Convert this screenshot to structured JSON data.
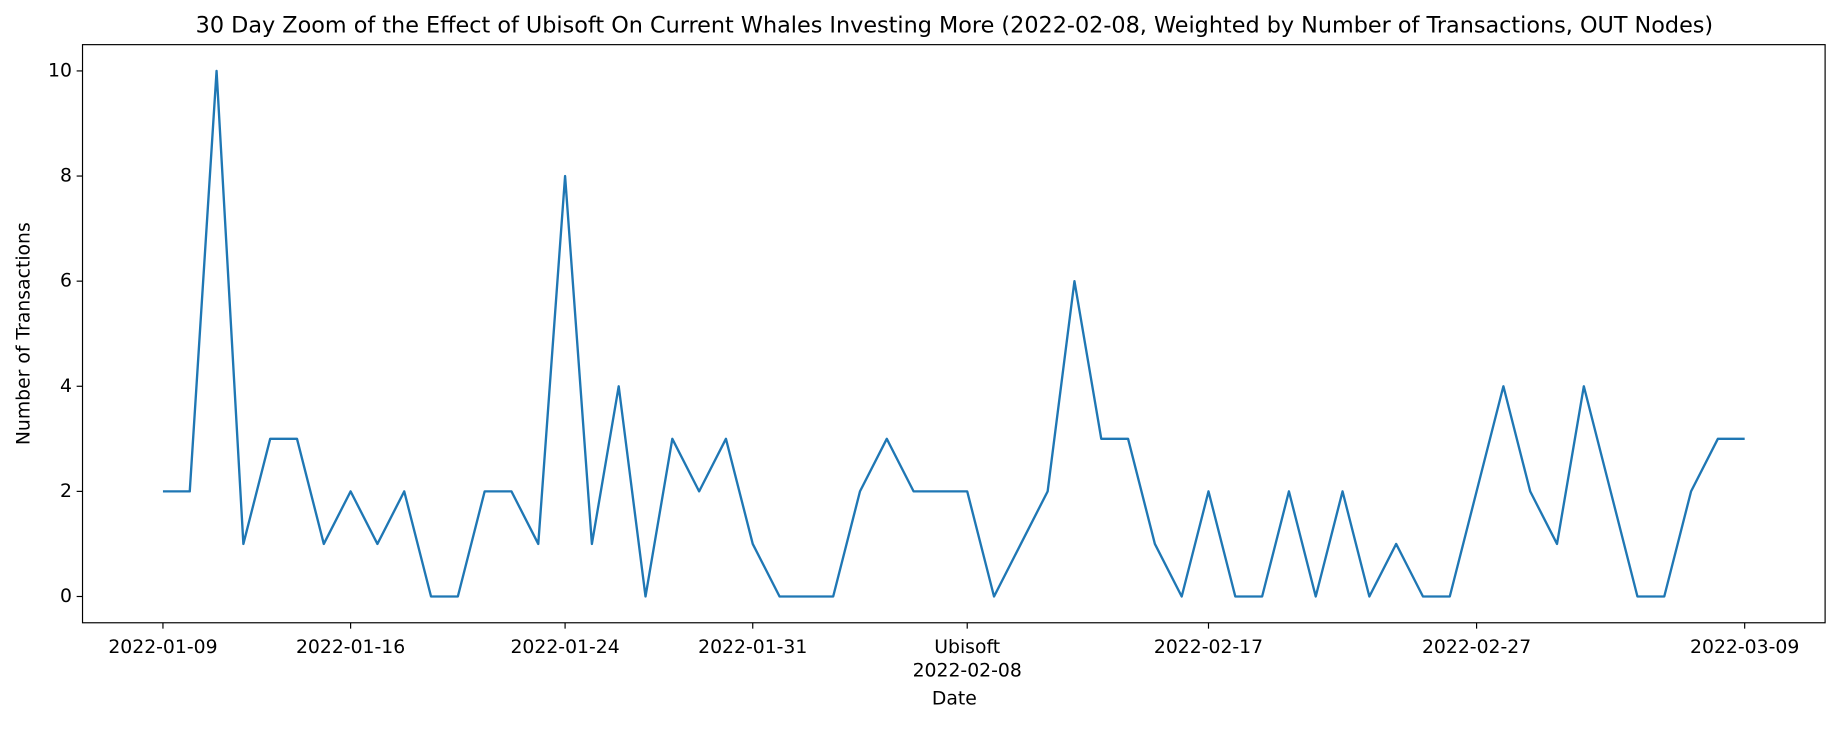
{
  "chart_data": {
    "type": "line",
    "title": "30 Day Zoom of the Effect of Ubisoft On Current Whales Investing More (2022-02-08, Weighted by Number of Transactions, OUT Nodes)",
    "xlabel": "Date",
    "ylabel": "Number of Transactions",
    "x": [
      "2022-01-09",
      "2022-01-10",
      "2022-01-11",
      "2022-01-12",
      "2022-01-13",
      "2022-01-14",
      "2022-01-15",
      "2022-01-16",
      "2022-01-17",
      "2022-01-18",
      "2022-01-19",
      "2022-01-20",
      "2022-01-21",
      "2022-01-22",
      "2022-01-23",
      "2022-01-24",
      "2022-01-25",
      "2022-01-26",
      "2022-01-27",
      "2022-01-28",
      "2022-01-29",
      "2022-01-30",
      "2022-01-31",
      "2022-02-01",
      "2022-02-02",
      "2022-02-03",
      "2022-02-04",
      "2022-02-05",
      "2022-02-06",
      "2022-02-07",
      "2022-02-08",
      "2022-02-09",
      "2022-02-10",
      "2022-02-11",
      "2022-02-12",
      "2022-02-13",
      "2022-02-14",
      "2022-02-15",
      "2022-02-16",
      "2022-02-17",
      "2022-02-18",
      "2022-02-19",
      "2022-02-20",
      "2022-02-21",
      "2022-02-22",
      "2022-02-23",
      "2022-02-24",
      "2022-02-25",
      "2022-02-26",
      "2022-02-27",
      "2022-02-28",
      "2022-03-01",
      "2022-03-02",
      "2022-03-03",
      "2022-03-04",
      "2022-03-05",
      "2022-03-06",
      "2022-03-07",
      "2022-03-08",
      "2022-03-09"
    ],
    "series": [
      {
        "color": "#1f77b4",
        "values": [
          2,
          2,
          10,
          1,
          3,
          3,
          1,
          2,
          1,
          2,
          0,
          0,
          2,
          2,
          1,
          8,
          1,
          4,
          0,
          3,
          2,
          3,
          1,
          0,
          0,
          0,
          2,
          3,
          2,
          2,
          2,
          0,
          1,
          2,
          6,
          3,
          3,
          1,
          0,
          2,
          0,
          0,
          2,
          0,
          2,
          0,
          1,
          0,
          0,
          2,
          4,
          2,
          1,
          4,
          2,
          0,
          0,
          2,
          3,
          3
        ]
      }
    ],
    "xlim": [
      "2022-01-06",
      "2022-03-12"
    ],
    "xticks": [
      "2022-01-09",
      "2022-01-16",
      "2022-01-24",
      "2022-01-31",
      "2022-02-08",
      "2022-02-17",
      "2022-02-27",
      "2022-03-09"
    ],
    "event": {
      "label": "Ubisoft",
      "date": "2022-02-08"
    },
    "ylim": [
      -0.5,
      10.5
    ],
    "yticks": [
      0,
      2,
      4,
      6,
      8,
      10
    ]
  }
}
